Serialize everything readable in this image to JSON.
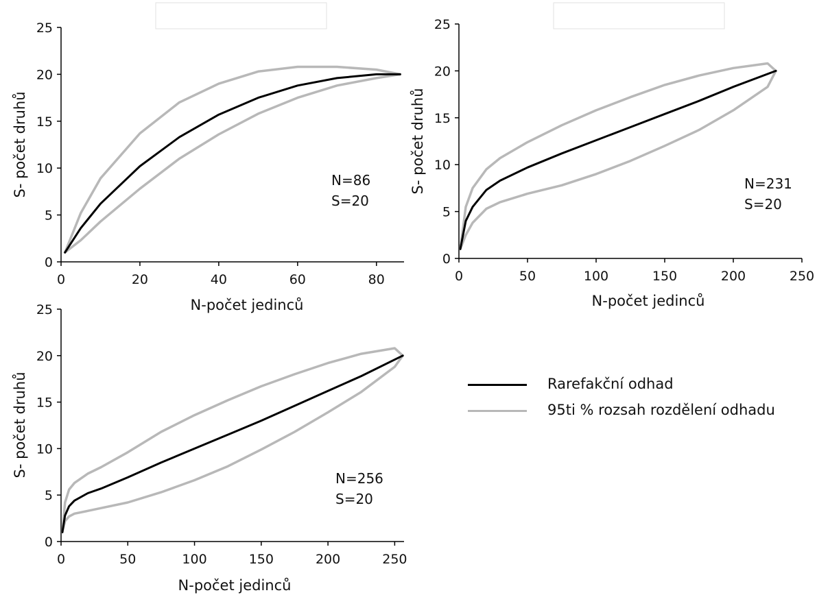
{
  "chart_data": [
    {
      "type": "line",
      "xlabel": "N-počet jedinců",
      "ylabel": "S- počet druhů",
      "xlim": [
        0,
        87
      ],
      "ylim": [
        0,
        25
      ],
      "xticks": [
        "0",
        "20",
        "40",
        "60",
        "80"
      ],
      "yticks": [
        "0",
        "5",
        "10",
        "15",
        "20",
        "25"
      ],
      "annotation": [
        "N=86",
        "S=20"
      ],
      "series": [
        {
          "role": "estimate",
          "color": "#000000",
          "x": [
            1,
            5,
            10,
            20,
            30,
            40,
            50,
            60,
            70,
            80,
            86
          ],
          "y": [
            1,
            3.6,
            6.2,
            10.2,
            13.3,
            15.7,
            17.5,
            18.8,
            19.6,
            20.0,
            20
          ]
        },
        {
          "role": "ci_upper",
          "color": "#b8b8b8",
          "x": [
            1,
            5,
            10,
            20,
            30,
            40,
            50,
            60,
            70,
            80,
            86
          ],
          "y": [
            1,
            5.2,
            8.9,
            13.7,
            17.0,
            19.0,
            20.3,
            20.8,
            20.8,
            20.5,
            20
          ]
        },
        {
          "role": "ci_lower",
          "color": "#b8b8b8",
          "x": [
            1,
            5,
            10,
            20,
            30,
            40,
            50,
            60,
            70,
            80,
            86
          ],
          "y": [
            1,
            2.3,
            4.3,
            7.8,
            11.0,
            13.6,
            15.8,
            17.5,
            18.8,
            19.6,
            20
          ]
        }
      ]
    },
    {
      "type": "line",
      "xlabel": "N-počet jedinců",
      "ylabel": "S- počet druhů",
      "xlim": [
        0,
        250
      ],
      "ylim": [
        0,
        25
      ],
      "xticks": [
        "0",
        "50",
        "100",
        "150",
        "200",
        "250"
      ],
      "yticks": [
        "0",
        "5",
        "10",
        "15",
        "20",
        "25"
      ],
      "annotation": [
        "N=231",
        "S=20"
      ],
      "series": [
        {
          "role": "estimate",
          "color": "#000000",
          "x": [
            1,
            5,
            10,
            20,
            30,
            50,
            75,
            100,
            125,
            150,
            175,
            200,
            231
          ],
          "y": [
            1,
            4.0,
            5.5,
            7.3,
            8.3,
            9.7,
            11.2,
            12.6,
            14.0,
            15.4,
            16.8,
            18.3,
            20
          ]
        },
        {
          "role": "ci_upper",
          "color": "#b8b8b8",
          "x": [
            1,
            5,
            10,
            20,
            30,
            50,
            75,
            100,
            125,
            150,
            175,
            200,
            225,
            231
          ],
          "y": [
            1,
            5.5,
            7.5,
            9.5,
            10.7,
            12.4,
            14.2,
            15.8,
            17.2,
            18.5,
            19.5,
            20.3,
            20.8,
            20
          ]
        },
        {
          "role": "ci_lower",
          "color": "#b8b8b8",
          "x": [
            1,
            5,
            10,
            20,
            30,
            50,
            75,
            100,
            125,
            150,
            175,
            200,
            225,
            231
          ],
          "y": [
            1,
            2.5,
            3.8,
            5.3,
            6.0,
            6.9,
            7.8,
            9.0,
            10.4,
            12.0,
            13.7,
            15.8,
            18.3,
            20
          ]
        }
      ]
    },
    {
      "type": "line",
      "xlabel": "N-počet jedinců",
      "ylabel": "S- počet druhů",
      "xlim": [
        0,
        257
      ],
      "ylim": [
        0,
        25
      ],
      "xticks": [
        "0",
        "50",
        "100",
        "150",
        "200",
        "250"
      ],
      "yticks": [
        "0",
        "5",
        "10",
        "15",
        "20",
        "25"
      ],
      "annotation": [
        "N=256",
        "S=20"
      ],
      "series": [
        {
          "role": "estimate",
          "color": "#000000",
          "x": [
            1,
            3,
            6,
            10,
            20,
            30,
            50,
            75,
            100,
            125,
            150,
            175,
            200,
            225,
            256
          ],
          "y": [
            1,
            2.8,
            3.8,
            4.4,
            5.2,
            5.7,
            6.9,
            8.5,
            10.0,
            11.5,
            13.0,
            14.6,
            16.2,
            17.8,
            20
          ]
        },
        {
          "role": "ci_upper",
          "color": "#b8b8b8",
          "x": [
            1,
            3,
            6,
            10,
            20,
            30,
            50,
            75,
            100,
            125,
            150,
            175,
            200,
            225,
            250,
            256
          ],
          "y": [
            1,
            4.2,
            5.6,
            6.3,
            7.3,
            8.0,
            9.6,
            11.8,
            13.6,
            15.2,
            16.7,
            18.0,
            19.2,
            20.2,
            20.8,
            20
          ]
        },
        {
          "role": "ci_lower",
          "color": "#b8b8b8",
          "x": [
            1,
            3,
            6,
            10,
            20,
            30,
            50,
            75,
            100,
            125,
            150,
            175,
            200,
            225,
            250,
            256
          ],
          "y": [
            1,
            2.2,
            2.7,
            3.0,
            3.3,
            3.6,
            4.2,
            5.3,
            6.6,
            8.1,
            9.9,
            11.8,
            13.9,
            16.1,
            18.8,
            20
          ]
        }
      ]
    }
  ],
  "legend": [
    {
      "label": "Rarefakční odhad",
      "color": "#000000"
    },
    {
      "label": "95ti % rozsah rozdělení odhadu",
      "color": "#b8b8b8"
    }
  ]
}
